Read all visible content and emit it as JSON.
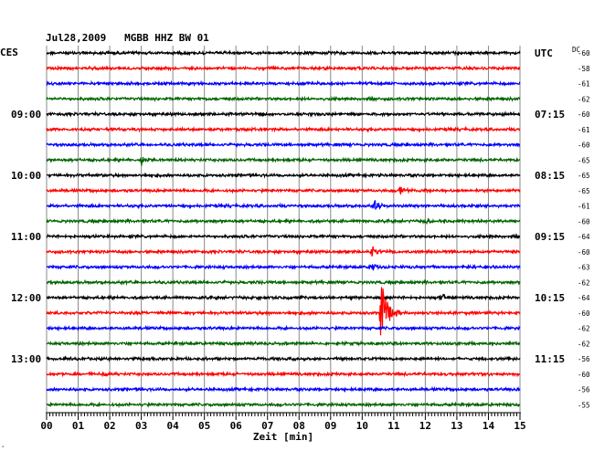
{
  "chart_data": {
    "type": "line",
    "title": "Jul28,2009   MGBB HHZ BW 01",
    "left_zone_label": "CES",
    "right_zone_label": "UTC",
    "dc_header": "DC",
    "xlabel": "Zeit [min]",
    "xlim": [
      0,
      15
    ],
    "x_ticks": [
      "00",
      "01",
      "02",
      "03",
      "04",
      "05",
      "06",
      "07",
      "08",
      "09",
      "10",
      "11",
      "12",
      "13",
      "14",
      "15"
    ],
    "trace_colors": [
      "#000000",
      "#ff0000",
      "#0000ff",
      "#006400"
    ],
    "left_hour_labels": [
      {
        "trace": 4,
        "text": "09:00"
      },
      {
        "trace": 8,
        "text": "10:00"
      },
      {
        "trace": 12,
        "text": "11:00"
      },
      {
        "trace": 16,
        "text": "12:00"
      },
      {
        "trace": 20,
        "text": "13:00"
      }
    ],
    "right_hour_labels": [
      {
        "trace": 0,
        "text": "UTC"
      },
      {
        "trace": 4,
        "text": "07:15"
      },
      {
        "trace": 8,
        "text": "08:15"
      },
      {
        "trace": 12,
        "text": "09:15"
      },
      {
        "trace": 16,
        "text": "10:15"
      },
      {
        "trace": 20,
        "text": "11:15"
      }
    ],
    "dc_values": [
      "-60",
      "-58",
      "-61",
      "-62",
      "-60",
      "-61",
      "-60",
      "-65",
      "-65",
      "-65",
      "-61",
      "-60",
      "-64",
      "-60",
      "-63",
      "-62",
      "-64",
      "-60",
      "-62",
      "-62",
      "-56",
      "-60",
      "-56",
      "-55"
    ],
    "events": [
      {
        "trace": 7,
        "minute": 3.0,
        "amplitude": 6
      },
      {
        "trace": 9,
        "minute": 11.2,
        "amplitude": 5
      },
      {
        "trace": 10,
        "minute": 10.4,
        "amplitude": 6
      },
      {
        "trace": 11,
        "minute": 12.0,
        "amplitude": 4
      },
      {
        "trace": 13,
        "minute": 10.3,
        "amplitude": 7
      },
      {
        "trace": 14,
        "minute": 10.3,
        "amplitude": 6
      },
      {
        "trace": 16,
        "minute": 12.5,
        "amplitude": 5
      },
      {
        "trace": 17,
        "minute": 10.6,
        "amplitude": 40
      },
      {
        "trace": 21,
        "minute": 1.8,
        "amplitude": 4
      }
    ]
  },
  "corner_mark": "‸"
}
